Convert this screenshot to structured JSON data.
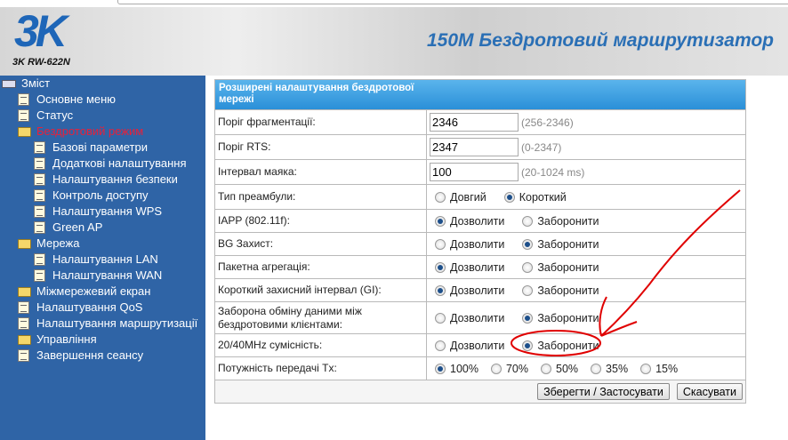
{
  "header": {
    "logo": "3K",
    "model": "3K RW-622N",
    "title": "150M Бездротовий маршрутизатор"
  },
  "sidebar": {
    "items": [
      {
        "label": "Зміст",
        "icon": "root-icon",
        "level": 0
      },
      {
        "label": "Основне меню",
        "icon": "page-icon",
        "level": 1
      },
      {
        "label": "Статус",
        "icon": "page-icon",
        "level": 1
      },
      {
        "label": "Бездротовий режим",
        "icon": "folder-open-icon",
        "level": 1,
        "active": true
      },
      {
        "label": "Базові параметри",
        "icon": "page-icon",
        "level": 2
      },
      {
        "label": "Додаткові налаштування",
        "icon": "page-icon",
        "level": 2
      },
      {
        "label": "Налаштування безпеки",
        "icon": "page-icon",
        "level": 2
      },
      {
        "label": "Контроль доступу",
        "icon": "page-icon",
        "level": 2
      },
      {
        "label": "Налаштування WPS",
        "icon": "page-icon",
        "level": 2
      },
      {
        "label": "Green AP",
        "icon": "page-icon",
        "level": 2
      },
      {
        "label": "Мережа",
        "icon": "folder-open-icon",
        "level": 1
      },
      {
        "label": "Налаштування LAN",
        "icon": "page-icon",
        "level": 2
      },
      {
        "label": "Налаштування WAN",
        "icon": "page-icon",
        "level": 2
      },
      {
        "label": "Міжмережевий екран",
        "icon": "folder-icon",
        "level": 1
      },
      {
        "label": "Налаштування QoS",
        "icon": "page-icon",
        "level": 1
      },
      {
        "label": "Налаштування маршрутизації",
        "icon": "page-icon",
        "level": 1
      },
      {
        "label": "Управління",
        "icon": "folder-icon",
        "level": 1
      },
      {
        "label": "Завершення сеансу",
        "icon": "page-icon",
        "level": 1
      }
    ]
  },
  "panel": {
    "title": "Розширені налаштування бездротової мережі",
    "fields": [
      {
        "label": "Поріг фрагментації:",
        "value": "2346",
        "hint": "(256-2346)"
      },
      {
        "label": "Поріг RTS:",
        "value": "2347",
        "hint": "(0-2347)"
      },
      {
        "label": "Інтервал маяка:",
        "value": "100",
        "hint": "(20-1024 ms)"
      }
    ],
    "radios": [
      {
        "label": "Тип преамбули:",
        "options": [
          "Довгий",
          "Короткий"
        ],
        "selected": 1
      },
      {
        "label": "IAPP (802.11f):",
        "options": [
          "Дозволити",
          "Заборонити"
        ],
        "selected": 0
      },
      {
        "label": "BG Захист:",
        "options": [
          "Дозволити",
          "Заборонити"
        ],
        "selected": 1
      },
      {
        "label": "Пакетна агрегація:",
        "options": [
          "Дозволити",
          "Заборонити"
        ],
        "selected": 0
      },
      {
        "label": "Короткий захисний інтервал (GI):",
        "options": [
          "Дозволити",
          "Заборонити"
        ],
        "selected": 0
      },
      {
        "label": "Заборона обміну даними між бездротовими клієнтами:",
        "options": [
          "Дозволити",
          "Заборонити"
        ],
        "selected": 1
      },
      {
        "label": "20/40MHz сумісність:",
        "options": [
          "Дозволити",
          "Заборонити"
        ],
        "selected": 1
      },
      {
        "label": "Потужність передачі Tx:",
        "options": [
          "100%",
          "70%",
          "50%",
          "35%",
          "15%"
        ],
        "selected": 0
      }
    ],
    "save_label": "Зберегти / Застосувати",
    "cancel_label": "Скасувати"
  },
  "colors": {
    "sidebar": "#2f64a6",
    "active": "#e8203a",
    "header_bar": "#2a8fd8",
    "annotation": "#e00000"
  }
}
